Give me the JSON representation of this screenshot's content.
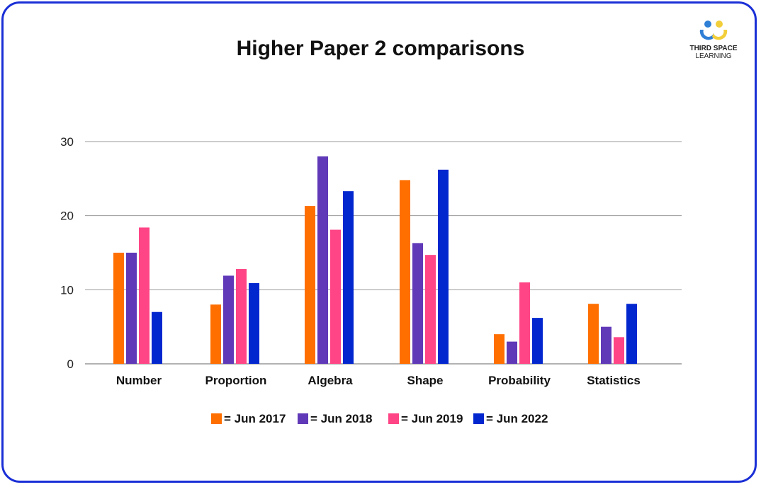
{
  "title": "Higher Paper 2 comparisons",
  "logo": {
    "line1": "THIRD SPACE",
    "line2": "LEARNING",
    "colors": [
      "#2f7fd6",
      "#f2cf3a"
    ]
  },
  "chart_data": {
    "type": "bar",
    "title": "Higher Paper 2 comparisons",
    "categories": [
      "Number",
      "Proportion",
      "Algebra",
      "Shape",
      "Probability",
      "Statistics"
    ],
    "series": [
      {
        "name": "= Jun 2017",
        "color": "#ff6f00",
        "values": [
          15,
          8,
          21.3,
          24.8,
          4,
          8.1
        ]
      },
      {
        "name": "= Jun 2018",
        "color": "#6039b8",
        "values": [
          15,
          11.9,
          28,
          16.3,
          3,
          5
        ]
      },
      {
        "name": "= Jun 2019",
        "color": "#ff4585",
        "values": [
          18.4,
          12.8,
          18.1,
          14.7,
          11,
          3.6
        ]
      },
      {
        "name": "= Jun 2022",
        "color": "#0327cf",
        "values": [
          7,
          10.9,
          23.3,
          26.2,
          6.2,
          8.1
        ]
      }
    ],
    "yticks": [
      0,
      10,
      20,
      30
    ],
    "ylim": [
      0,
      30
    ],
    "grid": true,
    "legend": "bottom",
    "xlabel": "",
    "ylabel": ""
  }
}
